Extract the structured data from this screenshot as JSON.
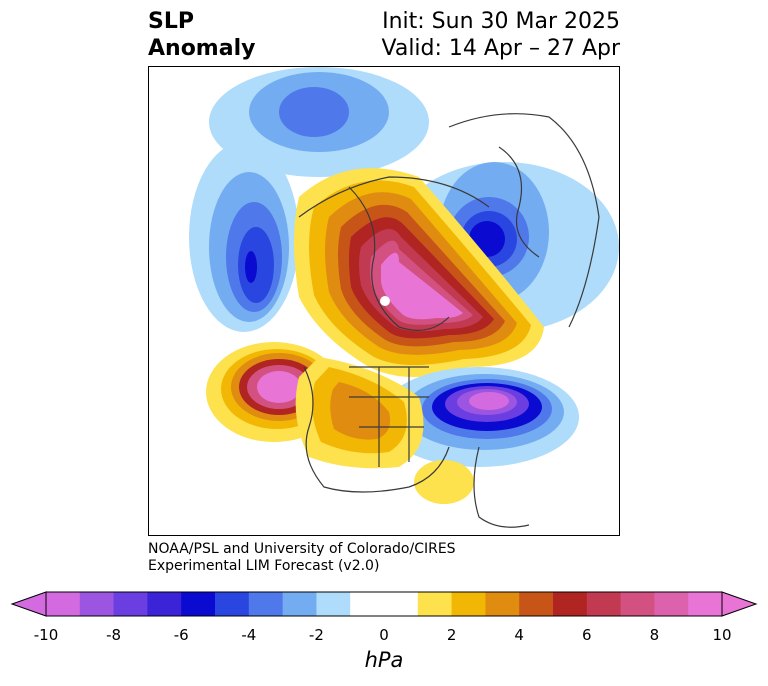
{
  "title": {
    "left_line1": "SLP",
    "left_line2": "Anomaly",
    "right_line1": "Init: Sun 30 Mar 2025",
    "right_line2": "Valid: 14 Apr – 27 Apr"
  },
  "credit": {
    "line1": "NOAA/PSL and University of Colorado/CIRES",
    "line2": "Experimental LIM Forecast (v2.0)"
  },
  "colorbar": {
    "units": "hPa",
    "tick_labels": [
      "-10",
      "-8",
      "-6",
      "-4",
      "-2",
      "0",
      "2",
      "4",
      "6",
      "8",
      "10"
    ],
    "colors": [
      "#d46ae0",
      "#9b55e0",
      "#6a3ee0",
      "#3b24d8",
      "#0a0ad0",
      "#2a46e0",
      "#4f78ea",
      "#74acf2",
      "#aedcfa",
      "#ffffff",
      "#ffffff",
      "#fde24d",
      "#f2b705",
      "#e08c10",
      "#c85518",
      "#b02422",
      "#c23a52",
      "#d25180",
      "#dd62ae",
      "#e874d6"
    ],
    "extend_min_color": "#d46ae0",
    "extend_max_color": "#e874d6"
  },
  "map": {
    "projection": "north-polar-stereographic",
    "anomalies": [
      {
        "name": "arctic-high",
        "sign": "positive",
        "peak_hPa": 10
      },
      {
        "name": "northeast-pacific-high",
        "sign": "positive",
        "peak_hPa": 10
      },
      {
        "name": "north-atlantic-low",
        "sign": "negative",
        "peak_hPa": -10
      },
      {
        "name": "gulf-of-alaska-low",
        "sign": "negative",
        "peak_hPa": -5
      },
      {
        "name": "siberia-low",
        "sign": "negative",
        "peak_hPa": -6
      },
      {
        "name": "eastern-europe-low",
        "sign": "negative",
        "peak_hPa": -5
      },
      {
        "name": "central-north-america-high",
        "sign": "positive",
        "peak_hPa": 4
      }
    ]
  }
}
